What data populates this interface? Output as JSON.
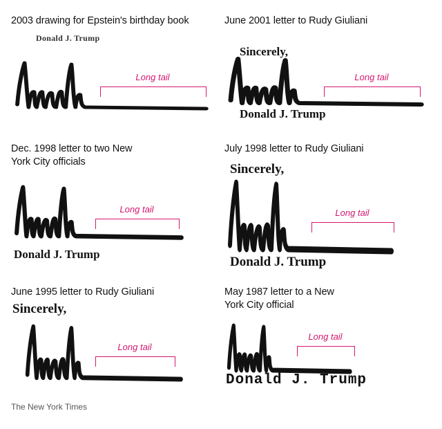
{
  "panels": [
    {
      "caption": "2003 drawing for Epstein's birthday book",
      "printed": "Donald J. Trump",
      "tail_label": "Long tail"
    },
    {
      "caption": "June 2001 letter to Rudy Giuliani",
      "closing": "Sincerely,",
      "printed": "Donald J. Trump",
      "tail_label": "Long tail"
    },
    {
      "caption": "Dec. 1998 letter to two New York City officials",
      "printed": "Donald J. Trump",
      "tail_label": "Long tail"
    },
    {
      "caption": "July 1998 letter to Rudy Giuliani",
      "closing": "Sincerely,",
      "printed": "Donald J. Trump",
      "tail_label": "Long tail"
    },
    {
      "caption": "June 1995 letter to Rudy Giuliani",
      "closing": "Sincerely,",
      "tail_label": "Long tail"
    },
    {
      "caption": "May 1987 letter to a New York City official",
      "printed": "Donald J. Trump",
      "tail_label": "Long tail"
    }
  ],
  "credit": "The New York Times",
  "colors": {
    "accent": "#d3176f",
    "ink": "#111111",
    "caption": "#121212"
  },
  "icons": [
    "signature-image"
  ]
}
